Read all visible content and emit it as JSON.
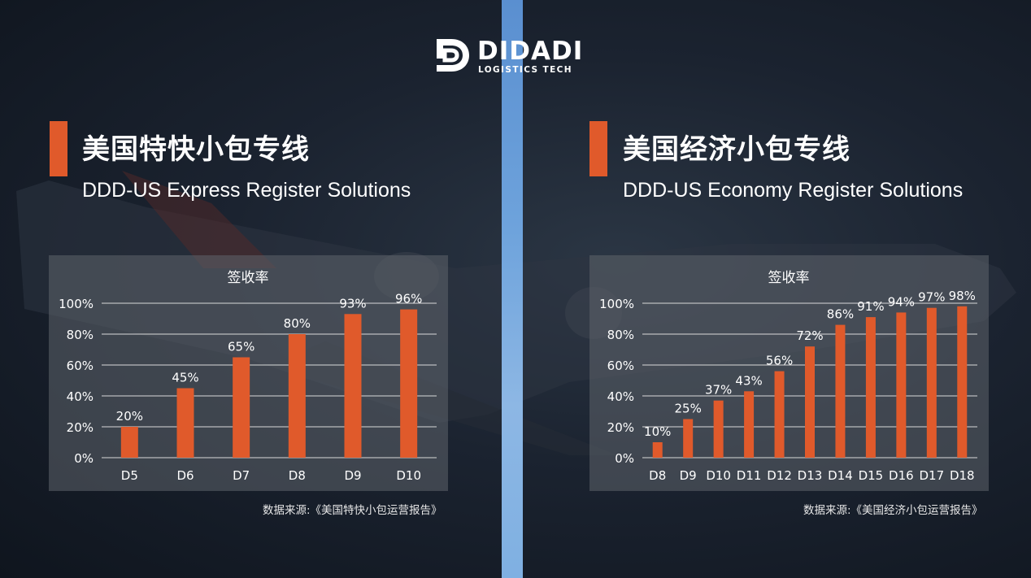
{
  "logo": {
    "name": "DIDADI",
    "tagline": "LOGISTICS TECH"
  },
  "colors": {
    "accent": "#e05a2b",
    "bar": "#e05a2b",
    "divider": "#6ea3dc"
  },
  "left": {
    "title_cn": "美国特快小包专线",
    "title_en": "DDD-US Express Register Solutions",
    "source": "数据来源:《美国特快小包运营报告》"
  },
  "right": {
    "title_cn": "美国经济小包专线",
    "title_en": "DDD-US Economy Register Solutions",
    "source": "数据来源:《美国经济小包运营报告》"
  },
  "chart_data": [
    {
      "type": "bar",
      "title": "签收率",
      "categories": [
        "D5",
        "D6",
        "D7",
        "D8",
        "D9",
        "D10"
      ],
      "values": [
        20,
        45,
        65,
        80,
        93,
        96
      ],
      "value_labels": [
        "20%",
        "45%",
        "65%",
        "80%",
        "93%",
        "96%"
      ],
      "ylim": [
        0,
        100
      ],
      "yticks": [
        "0%",
        "20%",
        "40%",
        "60%",
        "80%",
        "100%"
      ],
      "ytick_values": [
        0,
        20,
        40,
        60,
        80,
        100
      ],
      "grid": true,
      "legend": false
    },
    {
      "type": "bar",
      "title": "签收率",
      "categories": [
        "D8",
        "D9",
        "D10",
        "D11",
        "D12",
        "D13",
        "D14",
        "D15",
        "D16",
        "D17",
        "D18"
      ],
      "values": [
        10,
        25,
        37,
        43,
        56,
        72,
        86,
        91,
        94,
        97,
        98
      ],
      "value_labels": [
        "10%",
        "25%",
        "37%",
        "43%",
        "56%",
        "72%",
        "86%",
        "91%",
        "94%",
        "97%",
        "98%"
      ],
      "ylim": [
        0,
        100
      ],
      "yticks": [
        "0%",
        "20%",
        "40%",
        "60%",
        "80%",
        "100%"
      ],
      "ytick_values": [
        0,
        20,
        40,
        60,
        80,
        100
      ],
      "grid": true,
      "legend": false
    }
  ]
}
